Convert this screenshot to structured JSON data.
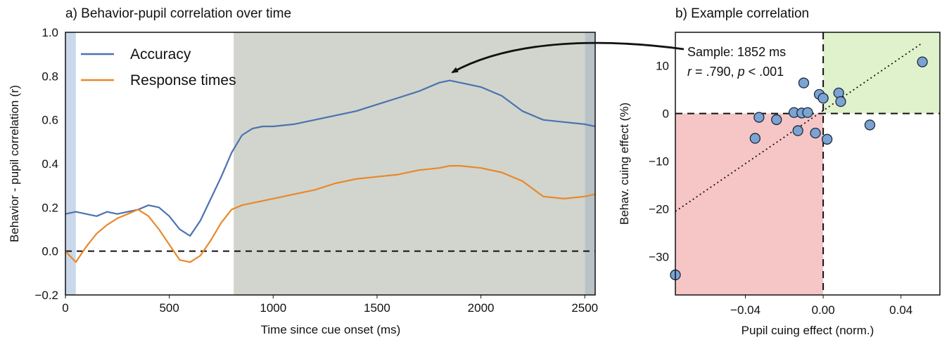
{
  "chart_data": [
    {
      "panel": "a",
      "type": "line",
      "title": "a) Behavior-pupil correlation over time",
      "xlabel": "Time since cue onset (ms)",
      "ylabel": "Behavior - pupil correlation (r)",
      "xlim": [
        0,
        2550
      ],
      "ylim": [
        -0.2,
        1.0
      ],
      "xticks": [
        "0",
        "500",
        "1000",
        "1500",
        "2000",
        "2500"
      ],
      "yticks": [
        "−0.2",
        "0.0",
        "0.2",
        "0.4",
        "0.6",
        "0.8",
        "1.0"
      ],
      "grid": false,
      "legend_position": "top-left",
      "reference_line": 0.0,
      "shaded_regions": [
        {
          "from": 0,
          "to": 50,
          "color": "#c9d8ea"
        },
        {
          "from": 810,
          "to": 2500,
          "color": "#d1d5cd"
        },
        {
          "from": 2500,
          "to": 2550,
          "color": "#b9c2c6"
        }
      ],
      "x": [
        0,
        50,
        100,
        150,
        200,
        250,
        300,
        350,
        400,
        450,
        500,
        550,
        600,
        650,
        700,
        750,
        800,
        850,
        900,
        950,
        1000,
        1100,
        1200,
        1300,
        1400,
        1500,
        1600,
        1700,
        1800,
        1850,
        1900,
        2000,
        2100,
        2200,
        2300,
        2400,
        2500,
        2550
      ],
      "series": [
        {
          "name": "Accuracy",
          "color": "#4c72b0",
          "values": [
            0.17,
            0.18,
            0.17,
            0.16,
            0.18,
            0.17,
            0.18,
            0.19,
            0.21,
            0.2,
            0.16,
            0.1,
            0.07,
            0.14,
            0.24,
            0.34,
            0.45,
            0.53,
            0.56,
            0.57,
            0.57,
            0.58,
            0.6,
            0.62,
            0.64,
            0.67,
            0.7,
            0.73,
            0.77,
            0.78,
            0.77,
            0.75,
            0.71,
            0.64,
            0.6,
            0.59,
            0.58,
            0.57
          ]
        },
        {
          "name": "Response times",
          "color": "#e9882b",
          "values": [
            0.0,
            -0.05,
            0.02,
            0.08,
            0.12,
            0.15,
            0.17,
            0.19,
            0.16,
            0.1,
            0.03,
            -0.04,
            -0.05,
            -0.02,
            0.05,
            0.13,
            0.19,
            0.21,
            0.22,
            0.23,
            0.24,
            0.26,
            0.28,
            0.31,
            0.33,
            0.34,
            0.35,
            0.37,
            0.38,
            0.39,
            0.39,
            0.38,
            0.36,
            0.32,
            0.25,
            0.24,
            0.25,
            0.26
          ]
        }
      ]
    },
    {
      "panel": "b",
      "type": "scatter",
      "title": "b) Example correlation",
      "xlabel": "Pupil cuing effect (norm.)",
      "ylabel": "Behav. cuing effect (%)",
      "xlim": [
        -0.076,
        0.06
      ],
      "ylim": [
        -38,
        17
      ],
      "xticks": [
        "−0.04",
        "0.00",
        "0.04"
      ],
      "xtick_values": [
        -0.04,
        0.0,
        0.04
      ],
      "yticks": [
        "10",
        "0",
        "−10",
        "−20",
        "−30"
      ],
      "ytick_values": [
        10,
        0,
        -10,
        -20,
        -30
      ],
      "annotation": {
        "line1": "Sample: 1852 ms",
        "r_symbol": "r",
        "r_text": " = .790, ",
        "p_symbol": "p",
        "p_text": " < .001",
        "arrow_target_ms": 1852
      },
      "regression_line": {
        "x1": -0.076,
        "y1": -20.5,
        "x2": 0.05,
        "y2": 14.5
      },
      "quadrant_colors": {
        "positive": "#dff2cc",
        "negative": "#f6c6c6"
      },
      "marker_color": "#7ba3d3",
      "points": [
        {
          "x": -0.076,
          "y": -33.8
        },
        {
          "x": -0.035,
          "y": -5.2
        },
        {
          "x": -0.033,
          "y": -0.8
        },
        {
          "x": -0.024,
          "y": -1.3
        },
        {
          "x": -0.015,
          "y": 0.2
        },
        {
          "x": -0.013,
          "y": -3.6
        },
        {
          "x": -0.011,
          "y": 0.1
        },
        {
          "x": -0.01,
          "y": 6.4
        },
        {
          "x": -0.008,
          "y": 0.2
        },
        {
          "x": -0.004,
          "y": -4.1
        },
        {
          "x": -0.002,
          "y": 4.0
        },
        {
          "x": 0.0,
          "y": 3.2
        },
        {
          "x": 0.002,
          "y": -5.4
        },
        {
          "x": 0.008,
          "y": 4.3
        },
        {
          "x": 0.009,
          "y": 2.5
        },
        {
          "x": 0.024,
          "y": -2.4
        },
        {
          "x": 0.051,
          "y": 10.8
        }
      ]
    }
  ]
}
